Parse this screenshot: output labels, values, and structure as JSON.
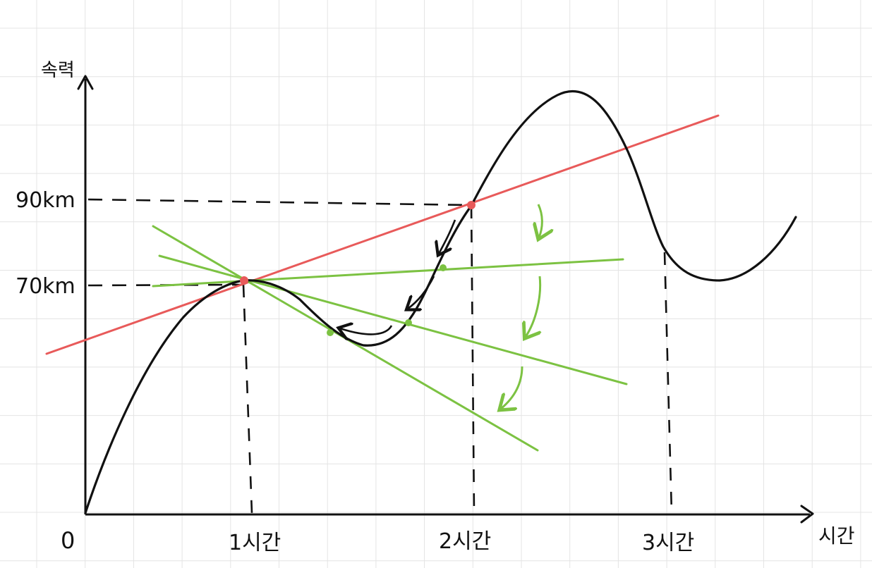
{
  "colors": {
    "background": "#ffffff",
    "grid": "#e4e4e4",
    "ink": "#111111",
    "secant": "#e85a5a",
    "tangent": "#7cc242"
  },
  "axes": {
    "y_label": "속력",
    "x_label": "시간",
    "origin_label": "0",
    "y_ticks": [
      "90km",
      "70km"
    ],
    "x_ticks": [
      "1시간",
      "2시간",
      "3시간"
    ]
  }
}
